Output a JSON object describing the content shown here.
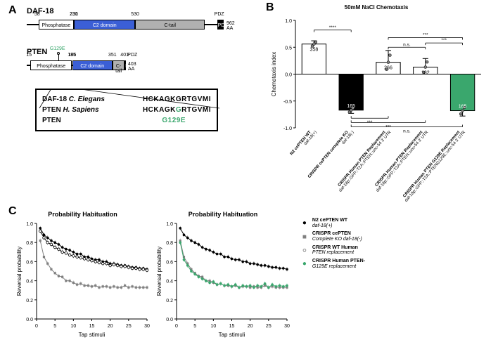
{
  "panelA": {
    "label": "A",
    "daf18": {
      "name": "DAF-18",
      "total_aa": "962 AA",
      "domains": [
        {
          "label": "Phosphatase",
          "start": 58,
          "end": 230,
          "color": "#ffffff",
          "textcolor": "#000"
        },
        {
          "label": "C2 domain",
          "start": 231,
          "end": 530,
          "color": "#3b5fd6",
          "textcolor": "#fff"
        },
        {
          "label": "C-tail",
          "start": 530,
          "end": 870,
          "color": "#b0b0b0",
          "textcolor": "#000"
        },
        {
          "label": "PDZ",
          "start": 930,
          "end": 962,
          "color": "#000000",
          "textcolor": "#fff"
        }
      ],
      "scale": 962,
      "aa_marks": [
        "58",
        "230",
        "231",
        "530"
      ]
    },
    "pten": {
      "name": "PTEN",
      "total_aa": "403 AA",
      "domains": [
        {
          "label": "Phosphatase",
          "start": 15,
          "end": 185,
          "color": "#ffffff",
          "textcolor": "#000"
        },
        {
          "label": "C2 domain",
          "start": 186,
          "end": 351,
          "color": "#3b5fd6",
          "textcolor": "#fff"
        },
        {
          "label": "C-tail",
          "start": 351,
          "end": 401,
          "color": "#b0b0b0",
          "textcolor": "#000"
        },
        {
          "label": "PDZ",
          "start": 401,
          "end": 403,
          "color": "#000000",
          "textcolor": "#fff"
        }
      ],
      "scale": 403,
      "aa_marks": [
        "15",
        "185",
        "186",
        "351",
        "401"
      ],
      "mutation": "G129E",
      "mut_pos": 129
    },
    "alignment": {
      "rows": [
        {
          "name": "DAF-18",
          "species": "C. Elegans",
          "seq": "HCKAGKGRTGVMI"
        },
        {
          "name": "PTEN",
          "species": "H. Sapiens",
          "seq": "HCKAGKGRTGVMI"
        },
        {
          "name": "PTEN",
          "species": "",
          "seq_mut": "G129E",
          "mut_index": 6
        }
      ]
    }
  },
  "panelB": {
    "label": "B",
    "title": "50mM NaCl Chemotaxis",
    "ylabel": "Chemotaxis index",
    "ylim": [
      -1.0,
      1.0
    ],
    "yticks": [
      -1.0,
      -0.5,
      0.0,
      0.5,
      1.0
    ],
    "bars": [
      {
        "label": "N2 cePTEN WT\ndaf-18(+)",
        "mean": 0.56,
        "sd": 0.06,
        "fill": "#ffffff",
        "n": "358"
      },
      {
        "label": "CRISPR cePTEN complete KO\ndaf-18(-)",
        "mean": -0.67,
        "sd": 0.06,
        "fill": "#000000",
        "n": "165"
      },
      {
        "label": "CRISPR Human PTEN Replacement\ndaf-18p::GFP::T2A::PTEN::unc-54 3' UTR",
        "mean": 0.22,
        "sd": 0.22,
        "fill": "#ffffff",
        "n": "266"
      },
      {
        "label": "CRISPR Human PTEN Replacement\ndaf-18p::GFP::T2A::PTEN::unc-54 3' UTR",
        "mean": 0.13,
        "sd": 0.16,
        "fill": "#ffffff",
        "n": "182"
      },
      {
        "label": "CRISPR Human PTEN G129E Replacement\ndaf-18p::GFP::T2A::PTENG129E::unc-54 3' UTR",
        "mean": -0.68,
        "sd": 0.1,
        "fill": "#3aa76d",
        "n": "165"
      }
    ],
    "sig": [
      {
        "from": 0,
        "to": 1,
        "label": "****",
        "y": 0.82
      },
      {
        "from": 2,
        "to": 3,
        "label": "n.s.",
        "y": 0.5
      },
      {
        "from": 2,
        "to": 4,
        "label": "***",
        "y": 0.68
      },
      {
        "from": 3,
        "to": 4,
        "label": "***",
        "y": 0.58
      },
      {
        "from": 1,
        "to": 2,
        "label": "***",
        "y": -0.82
      },
      {
        "from": 1,
        "to": 3,
        "label": "***",
        "y": -0.9
      },
      {
        "from": 1,
        "to": 4,
        "label": "n.s.",
        "y": -0.98
      }
    ],
    "point_color": "#808080"
  },
  "panelC": {
    "label": "C",
    "charts": [
      {
        "title": "Probability Habituation",
        "ylabel": "Reversal probability",
        "xlabel": "Tap stimuli",
        "xlim": [
          0,
          30
        ],
        "ylim": [
          0,
          1.0
        ],
        "xticks": [
          0,
          5,
          10,
          15,
          20,
          25,
          30
        ],
        "yticks": [
          0.0,
          0.2,
          0.4,
          0.6,
          0.8,
          1.0
        ],
        "series": [
          {
            "color": "#000000",
            "marker": "filled-circle",
            "y": [
              0.95,
              0.88,
              0.85,
              0.82,
              0.8,
              0.78,
              0.75,
              0.73,
              0.72,
              0.7,
              0.68,
              0.68,
              0.65,
              0.65,
              0.63,
              0.62,
              0.62,
              0.6,
              0.6,
              0.58,
              0.58,
              0.57,
              0.56,
              0.56,
              0.55,
              0.54,
              0.54,
              0.53,
              0.53,
              0.52
            ]
          },
          {
            "color": "#808080",
            "marker": "filled-square",
            "y": [
              0.82,
              0.65,
              0.58,
              0.52,
              0.48,
              0.45,
              0.44,
              0.4,
              0.4,
              0.38,
              0.36,
              0.37,
              0.35,
              0.35,
              0.34,
              0.35,
              0.33,
              0.34,
              0.34,
              0.33,
              0.34,
              0.33,
              0.33,
              0.35,
              0.33,
              0.34,
              0.33,
              0.33,
              0.33,
              0.33
            ]
          },
          {
            "color": "#000000",
            "marker": "open-circle",
            "y": [
              0.92,
              0.85,
              0.8,
              0.78,
              0.75,
              0.73,
              0.7,
              0.69,
              0.67,
              0.66,
              0.65,
              0.64,
              0.63,
              0.62,
              0.61,
              0.6,
              0.59,
              0.58,
              0.58,
              0.56,
              0.57,
              0.56,
              0.55,
              0.55,
              0.54,
              0.53,
              0.53,
              0.52,
              0.52,
              0.51
            ]
          }
        ]
      },
      {
        "title": "Probability Habituation",
        "ylabel": "Reversal probability",
        "xlabel": "Tap stimuli",
        "xlim": [
          0,
          30
        ],
        "ylim": [
          0,
          1.0
        ],
        "xticks": [
          0,
          5,
          10,
          15,
          20,
          25,
          30
        ],
        "yticks": [
          0.0,
          0.2,
          0.4,
          0.6,
          0.8,
          1.0
        ],
        "series": [
          {
            "color": "#000000",
            "marker": "filled-circle",
            "y": [
              0.95,
              0.88,
              0.85,
              0.82,
              0.8,
              0.78,
              0.75,
              0.73,
              0.72,
              0.7,
              0.68,
              0.68,
              0.65,
              0.65,
              0.63,
              0.62,
              0.62,
              0.6,
              0.6,
              0.58,
              0.58,
              0.57,
              0.56,
              0.56,
              0.55,
              0.54,
              0.54,
              0.53,
              0.53,
              0.52
            ]
          },
          {
            "color": "#808080",
            "marker": "filled-square",
            "y": [
              0.82,
              0.65,
              0.58,
              0.52,
              0.48,
              0.45,
              0.44,
              0.4,
              0.4,
              0.38,
              0.36,
              0.37,
              0.35,
              0.35,
              0.34,
              0.35,
              0.33,
              0.34,
              0.34,
              0.33,
              0.34,
              0.33,
              0.33,
              0.35,
              0.33,
              0.34,
              0.33,
              0.33,
              0.33,
              0.33
            ]
          },
          {
            "color": "#3aa76d",
            "marker": "filled-circle",
            "y": [
              0.8,
              0.62,
              0.56,
              0.5,
              0.47,
              0.44,
              0.42,
              0.4,
              0.38,
              0.39,
              0.36,
              0.37,
              0.35,
              0.36,
              0.34,
              0.36,
              0.33,
              0.35,
              0.34,
              0.35,
              0.33,
              0.35,
              0.34,
              0.37,
              0.33,
              0.36,
              0.34,
              0.35,
              0.34,
              0.35
            ]
          }
        ]
      }
    ],
    "legend": [
      {
        "label1": "N2 cePTEN WT",
        "label2": "daf-18(+)",
        "color": "#000000",
        "style": "filled-circle"
      },
      {
        "label1": "CRISPR cePTEN",
        "label2": "Complete KO daf-18(-)",
        "color": "#808080",
        "style": "filled-square"
      },
      {
        "label1": "CRISPR WT Human",
        "label2": "PTEN replacement",
        "color": "#000000",
        "style": "open-circle"
      },
      {
        "label1": "CRISPR Human PTEN-",
        "label2": "G129E replacement",
        "color": "#3aa76d",
        "style": "filled-circle"
      }
    ]
  },
  "colors": {
    "accent_blue": "#3b5fd6",
    "accent_green": "#3aa76d",
    "gray": "#b0b0b0"
  }
}
